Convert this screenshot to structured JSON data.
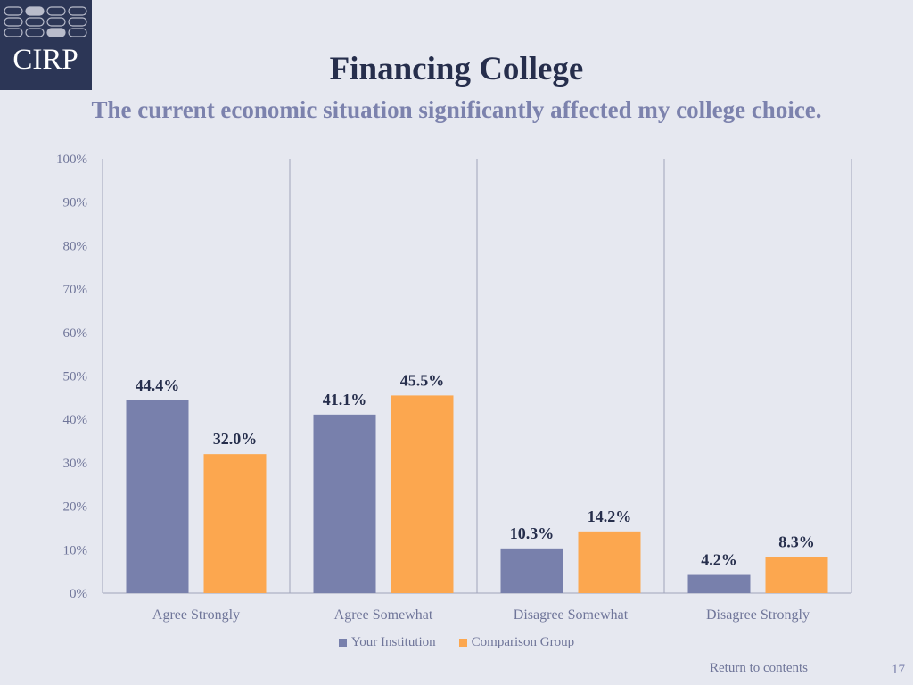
{
  "logo": {
    "text": "CIRP"
  },
  "chart_data": {
    "type": "bar",
    "title": "Financing College",
    "subtitle": "The current economic situation significantly affected my college choice.",
    "categories": [
      "Agree Strongly",
      "Agree Somewhat",
      "Disagree Somewhat",
      "Disagree Strongly"
    ],
    "series": [
      {
        "name": "Your Institution",
        "values": [
          44.4,
          41.1,
          10.3,
          4.2
        ],
        "labels": [
          "44.4%",
          "41.1%",
          "10.3%",
          "4.2%"
        ],
        "color": "#7880ac"
      },
      {
        "name": "Comparison Group",
        "values": [
          32.0,
          45.5,
          14.2,
          8.3
        ],
        "labels": [
          "32.0%",
          "45.5%",
          "14.2%",
          "8.3%"
        ],
        "color": "#fca74f"
      }
    ],
    "ylim": [
      0,
      100
    ],
    "yticks": [
      "0%",
      "10%",
      "20%",
      "30%",
      "40%",
      "50%",
      "60%",
      "70%",
      "80%",
      "90%",
      "100%"
    ],
    "grid": "vertical category separators",
    "legend": "bottom-center"
  },
  "footer": {
    "return_link": "Return to contents",
    "page_number": "17"
  },
  "colors": {
    "title": "#262e4c",
    "subtitle": "#7c82ad",
    "background": "#e6e8f0",
    "logo_bg": "#2c3656"
  }
}
